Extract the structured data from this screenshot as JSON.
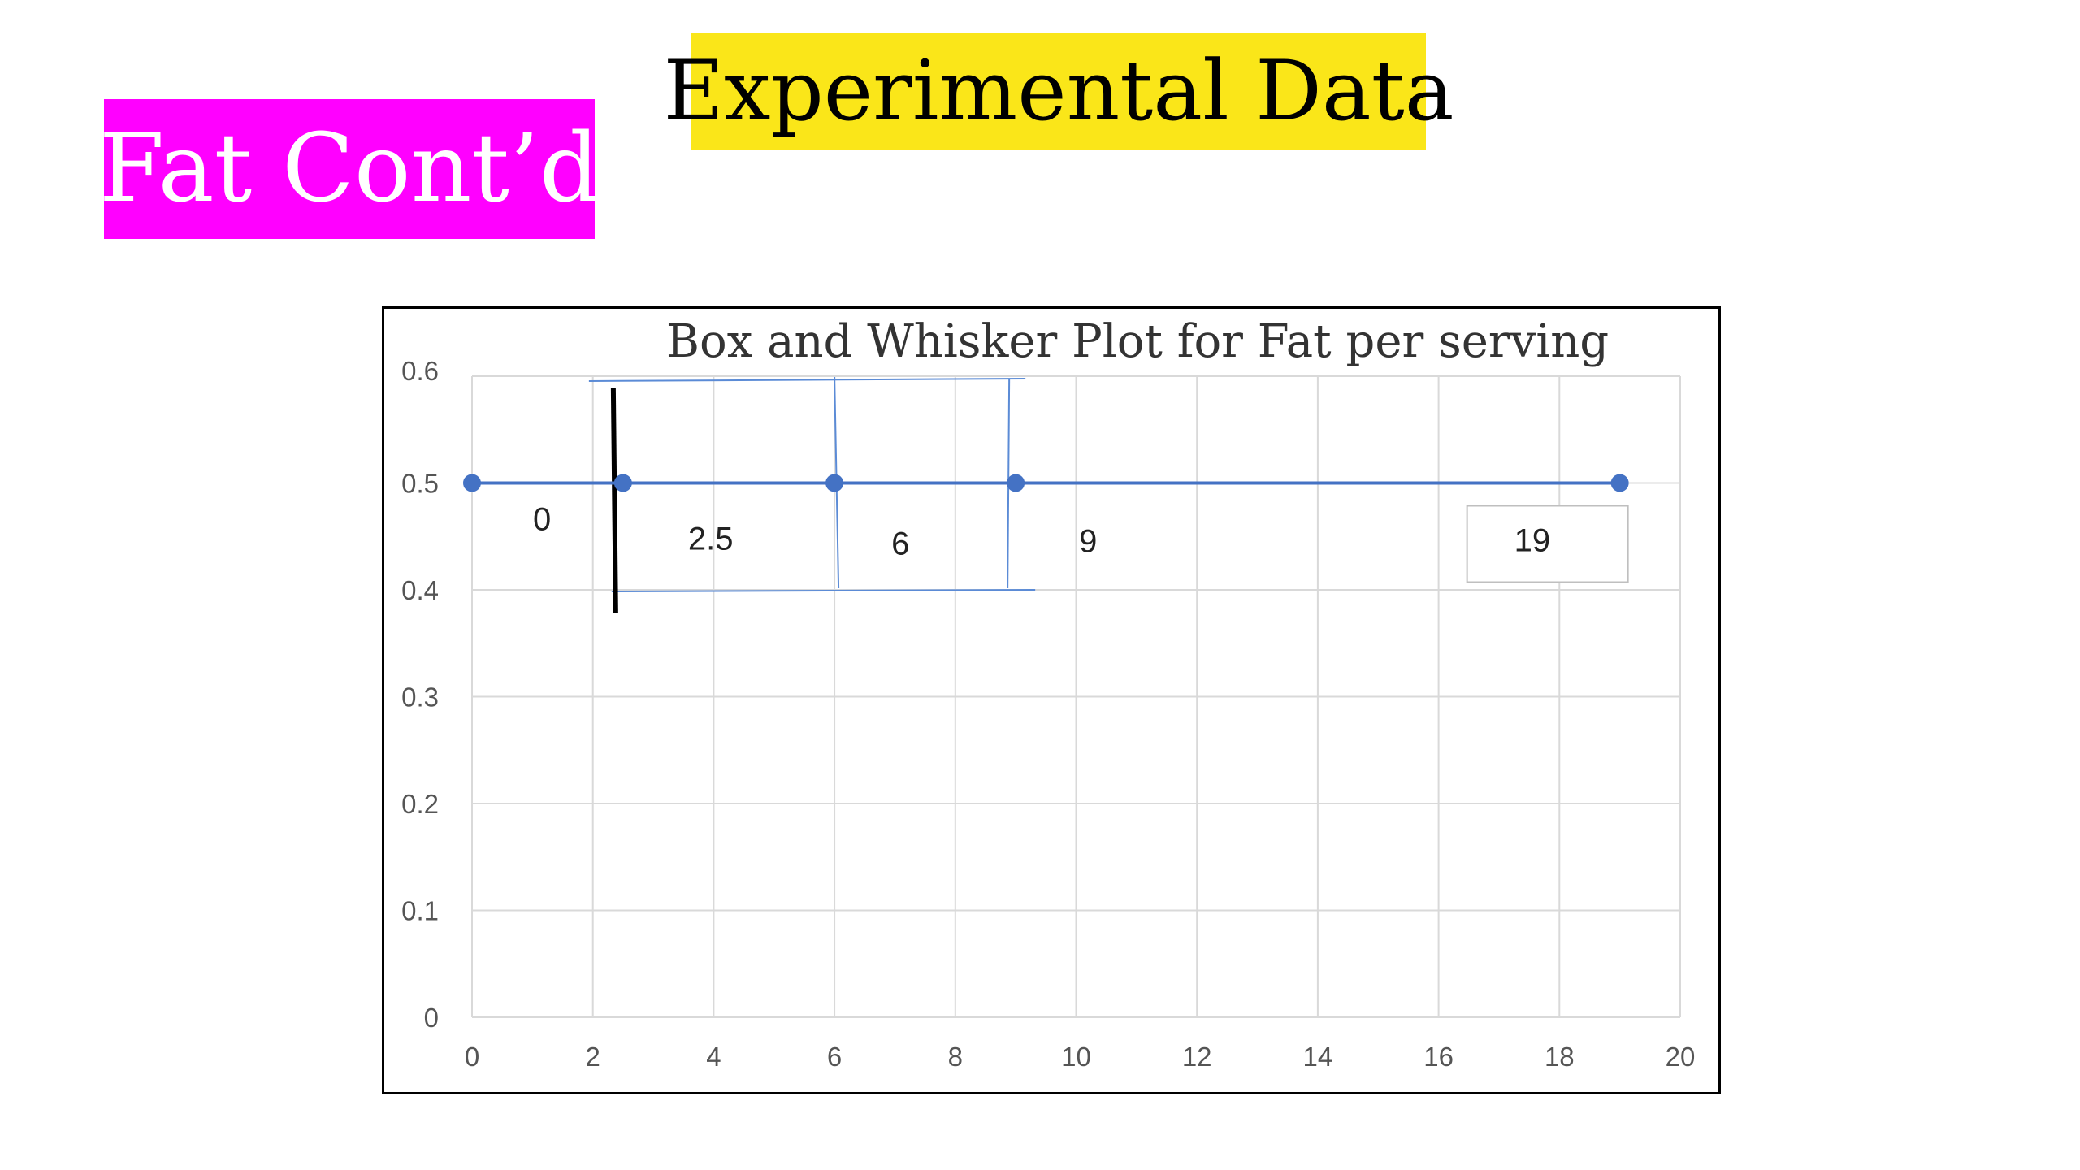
{
  "slide": {
    "title_left": "Fat Cont’d",
    "title_right": "Experimental Data"
  },
  "colors": {
    "title_left_bg": "#ff00ff",
    "title_left_text": "#ffffff",
    "title_right_bg": "#fae619",
    "title_right_text": "#000000",
    "series": "#4472c4",
    "box": "#5b8bd6",
    "q1_marker": "#000000",
    "grid": "#d9d9d9"
  },
  "chart_data": {
    "type": "scatter",
    "title": "Box and Whisker Plot for Fat per serving",
    "xlabel": "",
    "ylabel": "",
    "xlim": [
      0,
      20
    ],
    "ylim": [
      0,
      0.6
    ],
    "x_ticks": [
      "0",
      "2",
      "4",
      "6",
      "8",
      "10",
      "12",
      "14",
      "16",
      "18",
      "20"
    ],
    "y_ticks": [
      "0",
      "0.1",
      "0.2",
      "0.3",
      "0.4",
      "0.5",
      "0.6"
    ],
    "grid": true,
    "legend": "none",
    "series": [
      {
        "x": [
          0,
          2.5,
          6,
          9,
          19
        ],
        "y": [
          0.5,
          0.5,
          0.5,
          0.5,
          0.5
        ]
      }
    ],
    "data_labels": [
      "0",
      "2.5",
      "6",
      "9",
      "19"
    ],
    "box": {
      "q1": 2.5,
      "median": 6,
      "q3": 9,
      "y_low": 0.4,
      "y_high": 0.6
    }
  }
}
